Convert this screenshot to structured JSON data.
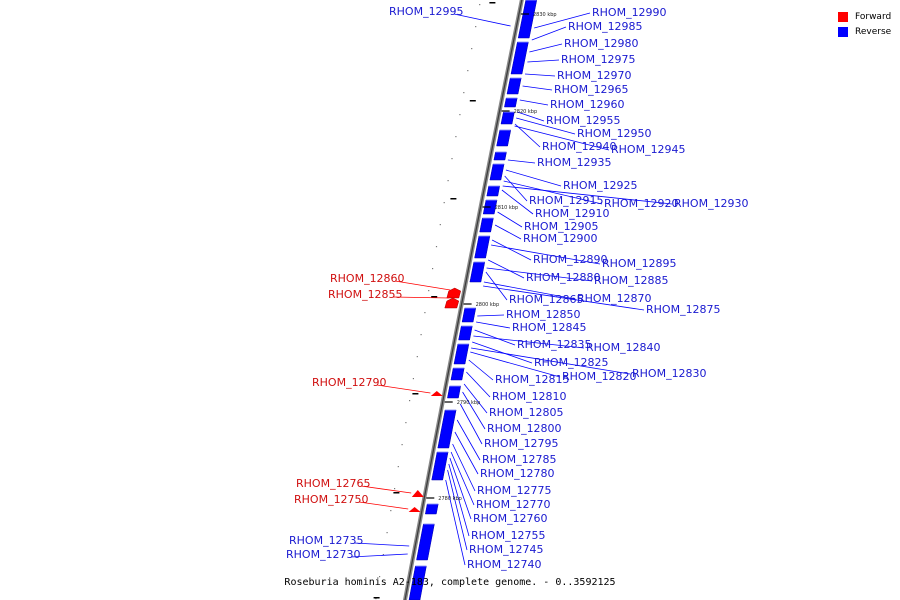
{
  "caption": "Roseburia hominis A2-183, complete genome. - 0..3592125",
  "legend": {
    "forward": {
      "label": "Forward",
      "color": "#ff0000"
    },
    "reverse": {
      "label": "Reverse",
      "color": "#0000ff"
    }
  },
  "ticks": [
    {
      "label": "2830 kbp"
    },
    {
      "label": "2820 kbp"
    },
    {
      "label": "2810 kbp"
    },
    {
      "label": "2800 kbp"
    },
    {
      "label": "2790 kbp"
    },
    {
      "label": "2780 kbp"
    }
  ],
  "genes": [
    {
      "name": "RHOM_12995",
      "strand": "reverse"
    },
    {
      "name": "RHOM_12990",
      "strand": "reverse"
    },
    {
      "name": "RHOM_12985",
      "strand": "reverse"
    },
    {
      "name": "RHOM_12980",
      "strand": "reverse"
    },
    {
      "name": "RHOM_12975",
      "strand": "reverse"
    },
    {
      "name": "RHOM_12970",
      "strand": "reverse"
    },
    {
      "name": "RHOM_12965",
      "strand": "reverse"
    },
    {
      "name": "RHOM_12960",
      "strand": "reverse"
    },
    {
      "name": "RHOM_12955",
      "strand": "reverse"
    },
    {
      "name": "RHOM_12950",
      "strand": "reverse"
    },
    {
      "name": "RHOM_12940",
      "strand": "reverse"
    },
    {
      "name": "RHOM_12945",
      "strand": "reverse"
    },
    {
      "name": "RHOM_12935",
      "strand": "reverse"
    },
    {
      "name": "RHOM_12925",
      "strand": "reverse"
    },
    {
      "name": "RHOM_12915",
      "strand": "reverse"
    },
    {
      "name": "RHOM_12920",
      "strand": "reverse"
    },
    {
      "name": "RHOM_12930",
      "strand": "reverse"
    },
    {
      "name": "RHOM_12910",
      "strand": "reverse"
    },
    {
      "name": "RHOM_12905",
      "strand": "reverse"
    },
    {
      "name": "RHOM_12900",
      "strand": "reverse"
    },
    {
      "name": "RHOM_12890",
      "strand": "reverse"
    },
    {
      "name": "RHOM_12895",
      "strand": "reverse"
    },
    {
      "name": "RHOM_12880",
      "strand": "reverse"
    },
    {
      "name": "RHOM_12885",
      "strand": "reverse"
    },
    {
      "name": "RHOM_12860",
      "strand": "forward"
    },
    {
      "name": "RHOM_12855",
      "strand": "forward"
    },
    {
      "name": "RHOM_12865",
      "strand": "reverse"
    },
    {
      "name": "RHOM_12870",
      "strand": "reverse"
    },
    {
      "name": "RHOM_12875",
      "strand": "reverse"
    },
    {
      "name": "RHOM_12850",
      "strand": "reverse"
    },
    {
      "name": "RHOM_12845",
      "strand": "reverse"
    },
    {
      "name": "RHOM_12835",
      "strand": "reverse"
    },
    {
      "name": "RHOM_12840",
      "strand": "reverse"
    },
    {
      "name": "RHOM_12825",
      "strand": "reverse"
    },
    {
      "name": "RHOM_12815",
      "strand": "reverse"
    },
    {
      "name": "RHOM_12820",
      "strand": "reverse"
    },
    {
      "name": "RHOM_12830",
      "strand": "reverse"
    },
    {
      "name": "RHOM_12790",
      "strand": "forward"
    },
    {
      "name": "RHOM_12810",
      "strand": "reverse"
    },
    {
      "name": "RHOM_12805",
      "strand": "reverse"
    },
    {
      "name": "RHOM_12800",
      "strand": "reverse"
    },
    {
      "name": "RHOM_12795",
      "strand": "reverse"
    },
    {
      "name": "RHOM_12785",
      "strand": "reverse"
    },
    {
      "name": "RHOM_12780",
      "strand": "reverse"
    },
    {
      "name": "RHOM_12765",
      "strand": "forward"
    },
    {
      "name": "RHOM_12775",
      "strand": "reverse"
    },
    {
      "name": "RHOM_12750",
      "strand": "forward"
    },
    {
      "name": "RHOM_12770",
      "strand": "reverse"
    },
    {
      "name": "RHOM_12760",
      "strand": "reverse"
    },
    {
      "name": "RHOM_12735",
      "strand": "reverse"
    },
    {
      "name": "RHOM_12755",
      "strand": "reverse"
    },
    {
      "name": "RHOM_12730",
      "strand": "reverse"
    },
    {
      "name": "RHOM_12745",
      "strand": "reverse"
    },
    {
      "name": "RHOM_12740",
      "strand": "reverse"
    }
  ]
}
